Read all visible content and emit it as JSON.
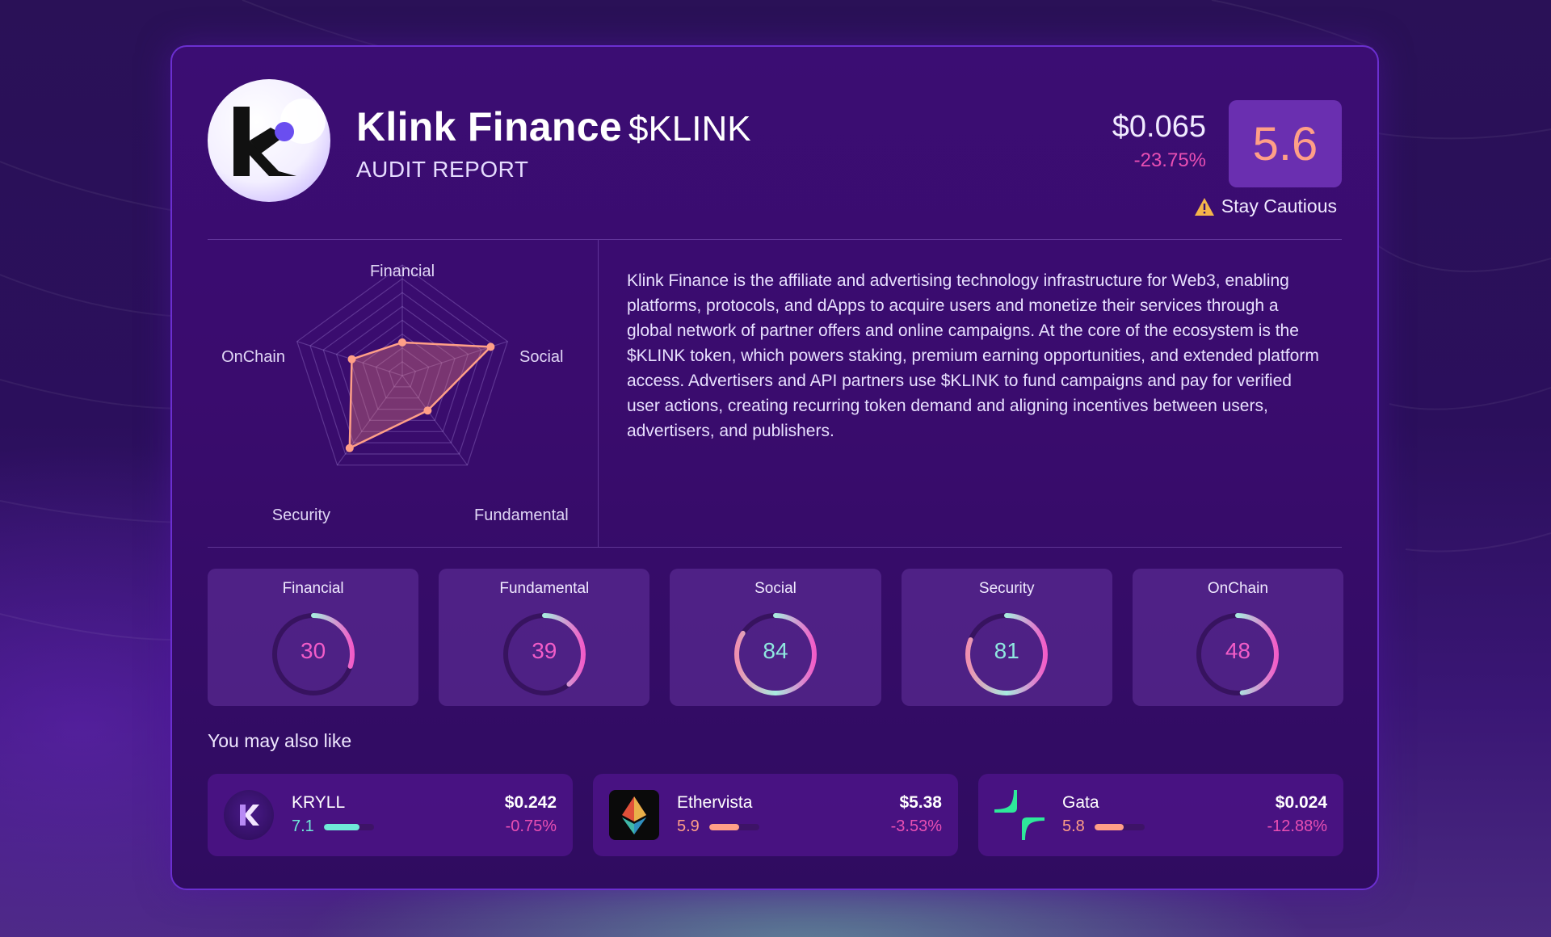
{
  "header": {
    "name": "Klink Finance",
    "ticker": "$KLINK",
    "subtitle": "AUDIT REPORT",
    "price": "$0.065",
    "price_change": "-23.75%",
    "score": "5.6",
    "caution_label": "Stay Cautious",
    "logo_icon": "klink-logo"
  },
  "radar": {
    "labels": {
      "financial": "Financial",
      "social": "Social",
      "fundamental": "Fundamental",
      "security": "Security",
      "onchain": "OnChain"
    },
    "values": {
      "financial": 30,
      "social": 84,
      "fundamental": 39,
      "security": 81,
      "onchain": 48
    },
    "color": "#ff9f87"
  },
  "description": "Klink Finance is the affiliate and advertising technology infrastructure for Web3, enabling platforms, protocols, and dApps to acquire users and monetize their services through a global network of partner offers and online campaigns. At the core of the ecosystem is the $KLINK token, which powers staking, premium earning opportunities, and extended platform access. Advertisers and API partners use $KLINK to fund campaigns and pay for verified user actions, creating recurring token demand and aligning incentives between users, advertisers, and publishers.",
  "metrics": [
    {
      "label": "Financial",
      "value": "30",
      "score": 30,
      "color": "#f25cc8"
    },
    {
      "label": "Fundamental",
      "value": "39",
      "score": 39,
      "color": "#f25cc8"
    },
    {
      "label": "Social",
      "value": "84",
      "score": 84,
      "color": "#8fe8e0"
    },
    {
      "label": "Security",
      "value": "81",
      "score": 81,
      "color": "#8fe8e0"
    },
    {
      "label": "OnChain",
      "value": "48",
      "score": 48,
      "color": "#f25cc8"
    }
  ],
  "related_title": "You may also like",
  "related": [
    {
      "name": "KRYLL",
      "score": "7.1",
      "score_fraction": 0.71,
      "bar_color": "#6fe8d8",
      "score_color": "#6fe8d8",
      "price": "$0.242",
      "change": "-0.75%",
      "icon": "kryll-icon"
    },
    {
      "name": "Ethervista",
      "score": "5.9",
      "score_fraction": 0.59,
      "bar_color": "#ff9f87",
      "score_color": "#ff9f87",
      "price": "$5.38",
      "change": "-3.53%",
      "icon": "ethervista-icon"
    },
    {
      "name": "Gata",
      "score": "5.8",
      "score_fraction": 0.58,
      "bar_color": "#ff9f87",
      "score_color": "#ff9f87",
      "price": "$0.024",
      "change": "-12.88%",
      "icon": "gata-icon"
    }
  ]
}
